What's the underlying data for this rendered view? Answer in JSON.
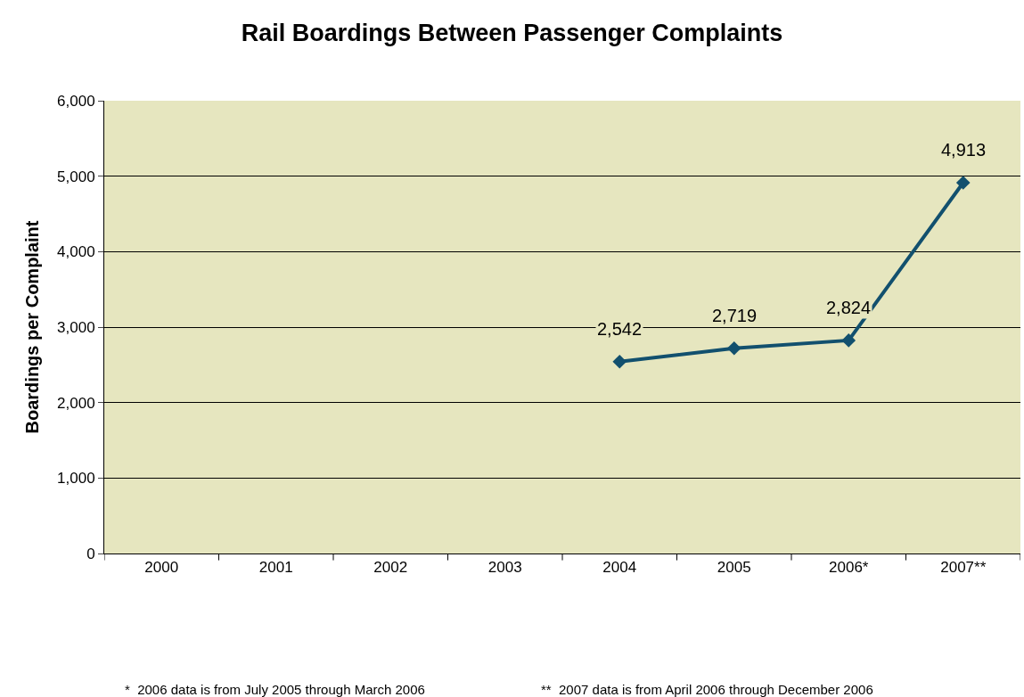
{
  "chart_data": {
    "type": "line",
    "title": "Rail Boardings Between Passenger Complaints",
    "ylabel": "Boardings per Complaint",
    "categories": [
      "2000",
      "2001",
      "2002",
      "2003",
      "2004",
      "2005",
      "2006*",
      "2007**"
    ],
    "series": [
      {
        "color": "#12506e",
        "values": [
          null,
          null,
          null,
          null,
          2542,
          2719,
          2824,
          4913
        ],
        "value_labels": [
          null,
          null,
          null,
          null,
          "2,542",
          "2,719",
          "2,824",
          "4,913"
        ]
      }
    ],
    "ylim": [
      0,
      6000
    ],
    "yticks": [
      0,
      {
        "value": 1000,
        "label": "1,000"
      },
      {
        "value": 2000,
        "label": "2,000"
      },
      {
        "value": 3000,
        "label": "3,000"
      },
      {
        "value": 4000,
        "label": "4,000"
      },
      {
        "value": 5000,
        "label": "5,000"
      },
      {
        "value": 6000,
        "label": "6,000"
      }
    ],
    "grid": "y",
    "marker": "diamond",
    "line_style": "solid",
    "annotations": [
      "*  2006 data is from July 2005 through March 2006",
      "**  2007 data is from April 2006 through December 2006"
    ]
  }
}
